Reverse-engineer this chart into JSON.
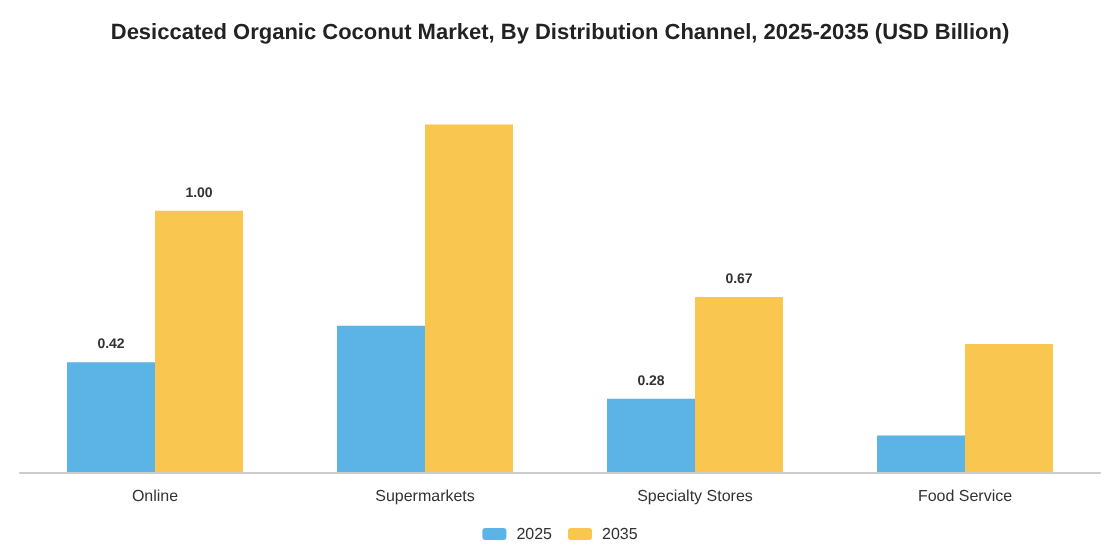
{
  "chart_data": {
    "type": "bar",
    "title": "Desiccated Organic Coconut Market, By Distribution Channel, 2025-2035 (USD Billion)",
    "categories": [
      "Online",
      "Supermarkets",
      "Specialty Stores",
      "Food Service"
    ],
    "series": [
      {
        "name": "2025",
        "color": "#5bb3e6",
        "values": [
          0.42,
          0.56,
          0.28,
          0.14
        ],
        "value_labels": [
          "0.42",
          null,
          "0.28",
          null
        ]
      },
      {
        "name": "2035",
        "color": "#f9c64f",
        "values": [
          1.0,
          1.33,
          0.67,
          0.49
        ],
        "value_labels": [
          "1.00",
          null,
          "0.67",
          null
        ]
      }
    ],
    "tick_labels": "x",
    "legend": "bottom"
  }
}
